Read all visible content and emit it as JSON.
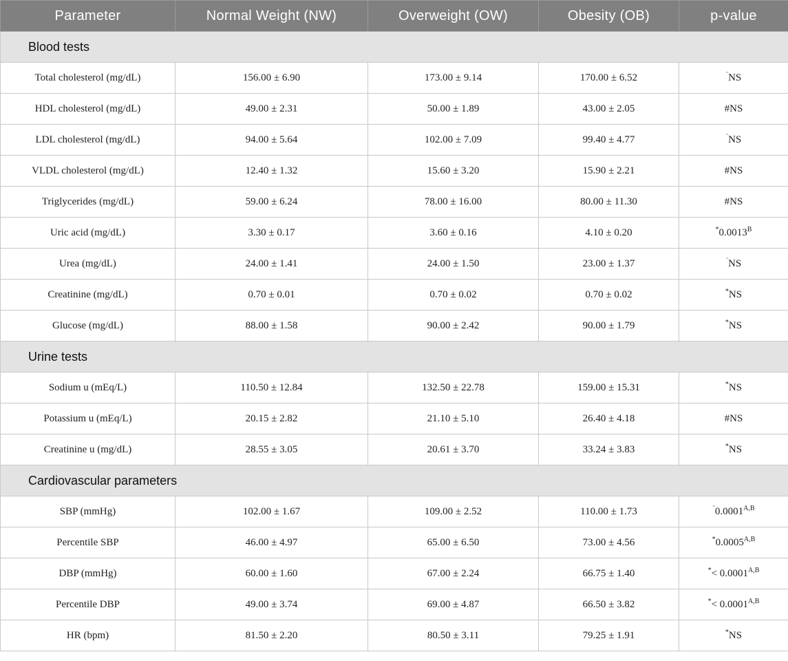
{
  "headers": [
    "Parameter",
    "Normal Weight (NW)",
    "Overweight (OW)",
    "Obesity (OB)",
    "p-value"
  ],
  "sections": [
    {
      "title": "Blood tests",
      "rows": [
        {
          "param": "Total cholesterol (mg/dL)",
          "nw": "156.00 ± 6.90",
          "ow": "173.00 ± 9.14",
          "ob": "170.00 ± 6.52",
          "p_pre": "¨",
          "p": "NS",
          "p_sup": ""
        },
        {
          "param": "HDL cholesterol (mg/dL)",
          "nw": "49.00 ± 2.31",
          "ow": "50.00 ± 1.89",
          "ob": "43.00 ± 2.05",
          "p_pre": "",
          "p": "#NS",
          "p_sup": ""
        },
        {
          "param": "LDL cholesterol (mg/dL)",
          "nw": "94.00 ± 5.64",
          "ow": "102.00 ± 7.09",
          "ob": "99.40 ± 4.77",
          "p_pre": "¨",
          "p": "NS",
          "p_sup": ""
        },
        {
          "param": "VLDL cholesterol (mg/dL)",
          "nw": "12.40 ± 1.32",
          "ow": "15.60 ± 3.20",
          "ob": "15.90 ± 2.21",
          "p_pre": "",
          "p": "#NS",
          "p_sup": ""
        },
        {
          "param": "Triglycerides (mg/dL)",
          "nw": "59.00 ± 6.24",
          "ow": "78.00 ± 16.00",
          "ob": "80.00 ± 11.30",
          "p_pre": "",
          "p": "#NS",
          "p_sup": ""
        },
        {
          "param": "Uric acid (mg/dL)",
          "nw": "3.30 ± 0.17",
          "ow": "3.60 ± 0.16",
          "ob": "4.10 ± 0.20",
          "p_pre": "*",
          "p": "0.0013",
          "p_sup": "B"
        },
        {
          "param": "Urea (mg/dL)",
          "nw": "24.00 ± 1.41",
          "ow": "24.00 ± 1.50",
          "ob": "23.00 ± 1.37",
          "p_pre": "¨",
          "p": "NS",
          "p_sup": ""
        },
        {
          "param": "Creatinine (mg/dL)",
          "nw": "0.70 ± 0.01",
          "ow": "0.70 ± 0.02",
          "ob": "0.70 ± 0.02",
          "p_pre": "*",
          "p": "NS",
          "p_sup": ""
        },
        {
          "param": "Glucose (mg/dL)",
          "nw": "88.00 ± 1.58",
          "ow": "90.00 ± 2.42",
          "ob": "90.00 ± 1.79",
          "p_pre": "*",
          "p": "NS",
          "p_sup": ""
        }
      ]
    },
    {
      "title": "Urine tests",
      "rows": [
        {
          "param": "Sodium u (mEq/L)",
          "nw": "110.50 ± 12.84",
          "ow": "132.50 ± 22.78",
          "ob": "159.00 ± 15.31",
          "p_pre": "*",
          "p": "NS",
          "p_sup": ""
        },
        {
          "param": "Potassium u (mEq/L)",
          "nw": "20.15 ± 2.82",
          "ow": "21.10 ± 5.10",
          "ob": "26.40 ± 4.18",
          "p_pre": "",
          "p": "#NS",
          "p_sup": ""
        },
        {
          "param": "Creatinine u (mg/dL)",
          "nw": "28.55 ± 3.05",
          "ow": "20.61 ± 3.70",
          "ob": "33.24 ± 3.83",
          "p_pre": "*",
          "p": "NS",
          "p_sup": ""
        }
      ]
    },
    {
      "title": "Cardiovascular parameters",
      "rows": [
        {
          "param": "SBP (mmHg)",
          "nw": "102.00 ± 1.67",
          "ow": "109.00 ± 2.52",
          "ob": "110.00 ± 1.73",
          "p_pre": "¨",
          "p": "0.0001",
          "p_sup": "A,B"
        },
        {
          "param": "Percentile SBP",
          "nw": "46.00 ± 4.97",
          "ow": "65.00 ± 6.50",
          "ob": "73.00 ± 4.56",
          "p_pre": "*",
          "p": "0.0005",
          "p_sup": "A,B"
        },
        {
          "param": "DBP (mmHg)",
          "nw": "60.00 ± 1.60",
          "ow": "67.00 ± 2.24",
          "ob": "66.75 ± 1.40",
          "p_pre": "*",
          "p": "< 0.0001",
          "p_sup": "A,B"
        },
        {
          "param": "Percentile DBP",
          "nw": "49.00 ± 3.74",
          "ow": "69.00 ± 4.87",
          "ob": "66.50 ± 3.82",
          "p_pre": "*",
          "p": "< 0.0001",
          "p_sup": "A,B"
        },
        {
          "param": "HR (bpm)",
          "nw": "81.50 ± 2.20",
          "ow": "80.50 ± 3.11",
          "ob": "79.25 ± 1.91",
          "p_pre": "*",
          "p": "NS",
          "p_sup": ""
        }
      ]
    }
  ]
}
